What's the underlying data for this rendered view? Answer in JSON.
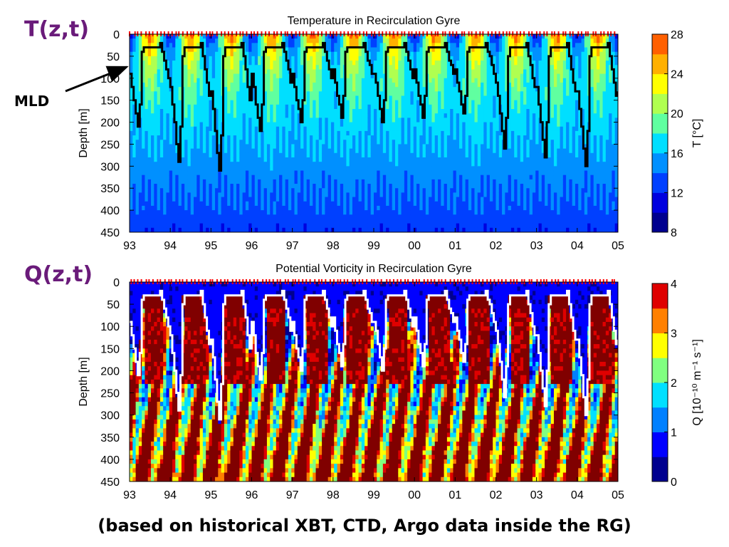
{
  "labels": {
    "t_panel": "T(z,t)",
    "q_panel": "Q(z,t)",
    "mld": "MLD",
    "footer": "(based on historical XBT, CTD, Argo data inside the RG)"
  },
  "chart_data": [
    {
      "type": "heatmap",
      "title": "Temperature in Recirculation Gyre",
      "xlabel": "",
      "ylabel": "Depth [m]",
      "x_ticks": [
        "93",
        "94",
        "95",
        "96",
        "97",
        "98",
        "99",
        "00",
        "01",
        "02",
        "03",
        "04",
        "05"
      ],
      "xlim": [
        1993,
        2005
      ],
      "y_ticks": [
        "0",
        "50",
        "100",
        "150",
        "200",
        "250",
        "300",
        "350",
        "400",
        "450"
      ],
      "ylim": [
        0,
        450
      ],
      "colorbar": {
        "label": "T [°C]",
        "ticks": [
          "8",
          "12",
          "16",
          "20",
          "24",
          "28"
        ],
        "range": [
          8,
          28
        ],
        "levels": [
          8,
          10,
          12,
          14,
          16,
          18,
          20,
          22,
          24,
          26,
          28
        ],
        "colors": [
          "#00008f",
          "#0000df",
          "#0040ff",
          "#0090ff",
          "#00dfff",
          "#60ffa0",
          "#b0ff50",
          "#ffff00",
          "#ffb000",
          "#ff6000",
          "#df0000"
        ]
      },
      "mld_line_color": "#000000",
      "mld_cycle_years": [
        1993,
        1994,
        1995,
        1996,
        1997,
        1998,
        1999,
        2000,
        2001,
        2002,
        2003,
        2004
      ],
      "mld_max_depth": [
        225,
        305,
        330,
        230,
        215,
        200,
        210,
        200,
        195,
        270,
        295,
        320
      ],
      "mld_min_depth": 20
    },
    {
      "type": "heatmap",
      "title": "Potential Vorticity in Recirculation Gyre",
      "xlabel": "",
      "ylabel": "Depth [m]",
      "x_ticks": [
        "93",
        "94",
        "95",
        "96",
        "97",
        "98",
        "99",
        "00",
        "01",
        "02",
        "03",
        "04",
        "05"
      ],
      "xlim": [
        1993,
        2005
      ],
      "y_ticks": [
        "0",
        "50",
        "100",
        "150",
        "200",
        "250",
        "300",
        "350",
        "400",
        "450"
      ],
      "ylim": [
        0,
        450
      ],
      "colorbar": {
        "label": "Q [10⁻¹⁰ m⁻¹ s⁻¹]",
        "ticks": [
          "0",
          "1",
          "2",
          "3",
          "4"
        ],
        "range": [
          0,
          4
        ],
        "levels": [
          0,
          0.5,
          1,
          1.5,
          2,
          2.5,
          3,
          3.5,
          4
        ],
        "colors": [
          "#00008f",
          "#0000ff",
          "#0080ff",
          "#00e0ff",
          "#80ff80",
          "#ffff00",
          "#ff8000",
          "#df0000",
          "#800000"
        ]
      },
      "mld_line_color": "#ffffff",
      "mld_cycle_years": [
        1993,
        1994,
        1995,
        1996,
        1997,
        1998,
        1999,
        2000,
        2001,
        2002,
        2003,
        2004
      ],
      "mld_max_depth": [
        225,
        305,
        330,
        230,
        215,
        200,
        210,
        200,
        195,
        270,
        295,
        320
      ],
      "mld_min_depth": 20
    }
  ],
  "colors": {
    "panel_label": "#6a1b7a",
    "obs_marks": "#ff0000"
  }
}
